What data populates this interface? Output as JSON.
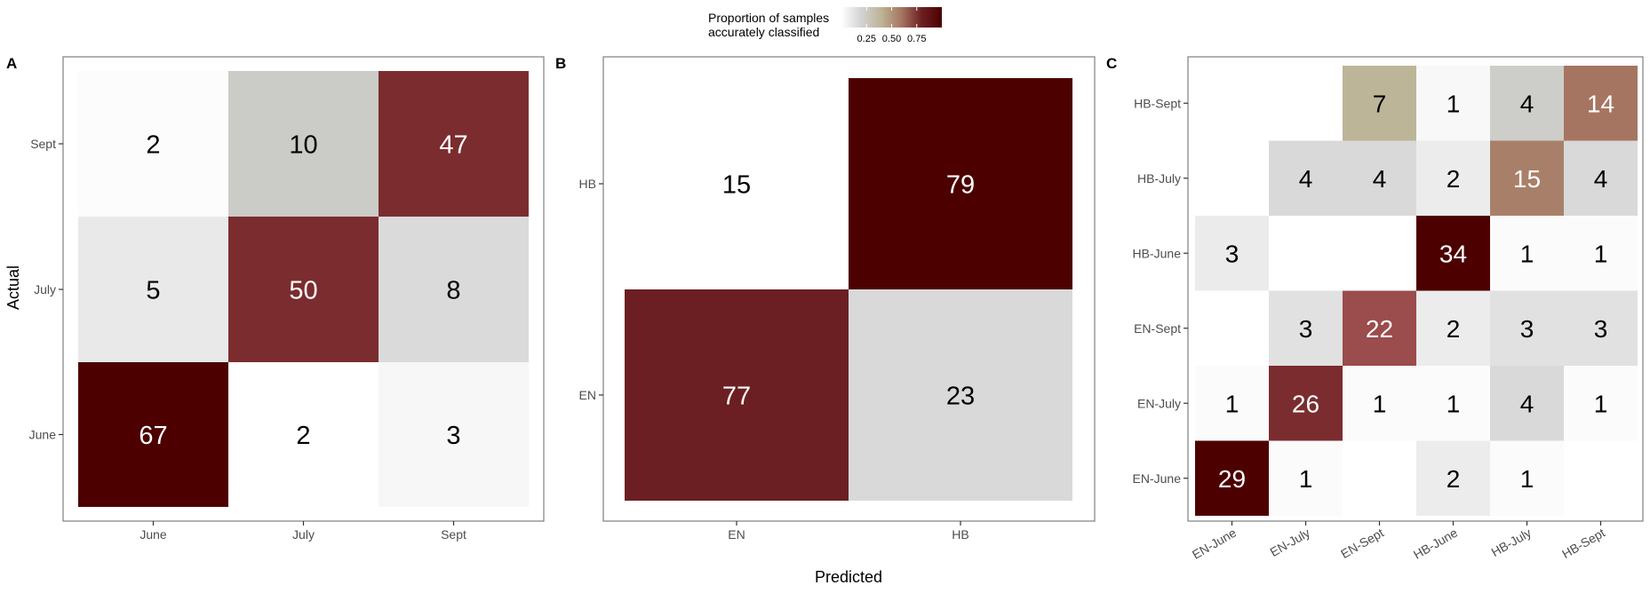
{
  "legend": {
    "title_line1": "Proportion of samples",
    "title_line2": "accurately classified",
    "ticks": [
      "0.25",
      "0.50",
      "0.75"
    ],
    "tick_values": [
      0.25,
      0.5,
      0.75
    ],
    "colors": [
      "#ffffff",
      "#d2d2d2",
      "#bdb394",
      "#a67561",
      "#6b1f23",
      "#4c0000"
    ]
  },
  "axis_titles": {
    "y": "Actual",
    "x": "Predicted"
  },
  "colors": {
    "panel_border": "#7f7f7f",
    "text_dark": "#000000",
    "text_light": "#ffffff"
  },
  "chart_data": [
    {
      "panel": "A",
      "type": "heatmap",
      "x_categories": [
        "June",
        "July",
        "Sept"
      ],
      "y_categories": [
        "June",
        "July",
        "Sept"
      ],
      "cells": [
        {
          "actual": "Sept",
          "predicted": "June",
          "count": 2,
          "color": "#fcfcfc"
        },
        {
          "actual": "Sept",
          "predicted": "July",
          "count": 10,
          "color": "#cbcbc7"
        },
        {
          "actual": "Sept",
          "predicted": "Sept",
          "count": 47,
          "color": "#7b2c2f"
        },
        {
          "actual": "July",
          "predicted": "June",
          "count": 5,
          "color": "#e9e9e9"
        },
        {
          "actual": "July",
          "predicted": "July",
          "count": 50,
          "color": "#7b2c2f"
        },
        {
          "actual": "July",
          "predicted": "Sept",
          "count": 8,
          "color": "#dadada"
        },
        {
          "actual": "June",
          "predicted": "June",
          "count": 67,
          "color": "#4c0000"
        },
        {
          "actual": "June",
          "predicted": "July",
          "count": 2,
          "color": "#ffffff"
        },
        {
          "actual": "June",
          "predicted": "Sept",
          "count": 3,
          "color": "#f7f7f7"
        }
      ]
    },
    {
      "panel": "B",
      "type": "heatmap",
      "x_categories": [
        "EN",
        "HB"
      ],
      "y_categories": [
        "EN",
        "HB"
      ],
      "cells": [
        {
          "actual": "HB",
          "predicted": "EN",
          "count": 15,
          "color": "#ffffff"
        },
        {
          "actual": "HB",
          "predicted": "HB",
          "count": 79,
          "color": "#4c0000"
        },
        {
          "actual": "EN",
          "predicted": "EN",
          "count": 77,
          "color": "#6c1f23"
        },
        {
          "actual": "EN",
          "predicted": "HB",
          "count": 23,
          "color": "#d9d9d9"
        }
      ]
    },
    {
      "panel": "C",
      "type": "heatmap",
      "x_categories": [
        "EN-June",
        "EN-July",
        "EN-Sept",
        "HB-June",
        "HB-July",
        "HB-Sept"
      ],
      "y_categories": [
        "EN-June",
        "EN-July",
        "EN-Sept",
        "HB-June",
        "HB-July",
        "HB-Sept"
      ],
      "cells": [
        {
          "actual": "HB-Sept",
          "predicted": "EN-Sept",
          "count": 7,
          "color": "#bdb597"
        },
        {
          "actual": "HB-Sept",
          "predicted": "HB-June",
          "count": 1,
          "color": "#f8f8f8"
        },
        {
          "actual": "HB-Sept",
          "predicted": "HB-July",
          "count": 4,
          "color": "#cdcdc9"
        },
        {
          "actual": "HB-Sept",
          "predicted": "HB-Sept",
          "count": 14,
          "color": "#a67561"
        },
        {
          "actual": "HB-July",
          "predicted": "EN-July",
          "count": 4,
          "color": "#d9d9d9"
        },
        {
          "actual": "HB-July",
          "predicted": "EN-Sept",
          "count": 4,
          "color": "#d9d9d9"
        },
        {
          "actual": "HB-July",
          "predicted": "HB-June",
          "count": 2,
          "color": "#ececec"
        },
        {
          "actual": "HB-July",
          "predicted": "HB-July",
          "count": 15,
          "color": "#a8806a"
        },
        {
          "actual": "HB-July",
          "predicted": "HB-Sept",
          "count": 4,
          "color": "#d9d9d9"
        },
        {
          "actual": "HB-June",
          "predicted": "EN-June",
          "count": 3,
          "color": "#ebebeb"
        },
        {
          "actual": "HB-June",
          "predicted": "HB-June",
          "count": 34,
          "color": "#4c0000"
        },
        {
          "actual": "HB-June",
          "predicted": "HB-July",
          "count": 1,
          "color": "#fbfbfb"
        },
        {
          "actual": "HB-June",
          "predicted": "HB-Sept",
          "count": 1,
          "color": "#fbfbfb"
        },
        {
          "actual": "EN-Sept",
          "predicted": "EN-July",
          "count": 3,
          "color": "#e1e1e1"
        },
        {
          "actual": "EN-Sept",
          "predicted": "EN-Sept",
          "count": 22,
          "color": "#9b4c4c"
        },
        {
          "actual": "EN-Sept",
          "predicted": "HB-June",
          "count": 2,
          "color": "#ececec"
        },
        {
          "actual": "EN-Sept",
          "predicted": "HB-July",
          "count": 3,
          "color": "#e1e1e1"
        },
        {
          "actual": "EN-Sept",
          "predicted": "HB-Sept",
          "count": 3,
          "color": "#e1e1e1"
        },
        {
          "actual": "EN-July",
          "predicted": "EN-June",
          "count": 1,
          "color": "#fbfbfb"
        },
        {
          "actual": "EN-July",
          "predicted": "EN-July",
          "count": 26,
          "color": "#7b2c2f"
        },
        {
          "actual": "EN-July",
          "predicted": "EN-Sept",
          "count": 1,
          "color": "#fbfbfb"
        },
        {
          "actual": "EN-July",
          "predicted": "HB-June",
          "count": 1,
          "color": "#fbfbfb"
        },
        {
          "actual": "EN-July",
          "predicted": "HB-July",
          "count": 4,
          "color": "#d9d9d9"
        },
        {
          "actual": "EN-July",
          "predicted": "HB-Sept",
          "count": 1,
          "color": "#fbfbfb"
        },
        {
          "actual": "EN-June",
          "predicted": "EN-June",
          "count": 29,
          "color": "#4c0000"
        },
        {
          "actual": "EN-June",
          "predicted": "EN-July",
          "count": 1,
          "color": "#fbfbfb"
        },
        {
          "actual": "EN-June",
          "predicted": "HB-June",
          "count": 2,
          "color": "#ececec"
        },
        {
          "actual": "EN-June",
          "predicted": "HB-July",
          "count": 1,
          "color": "#fbfbfb"
        }
      ]
    }
  ]
}
